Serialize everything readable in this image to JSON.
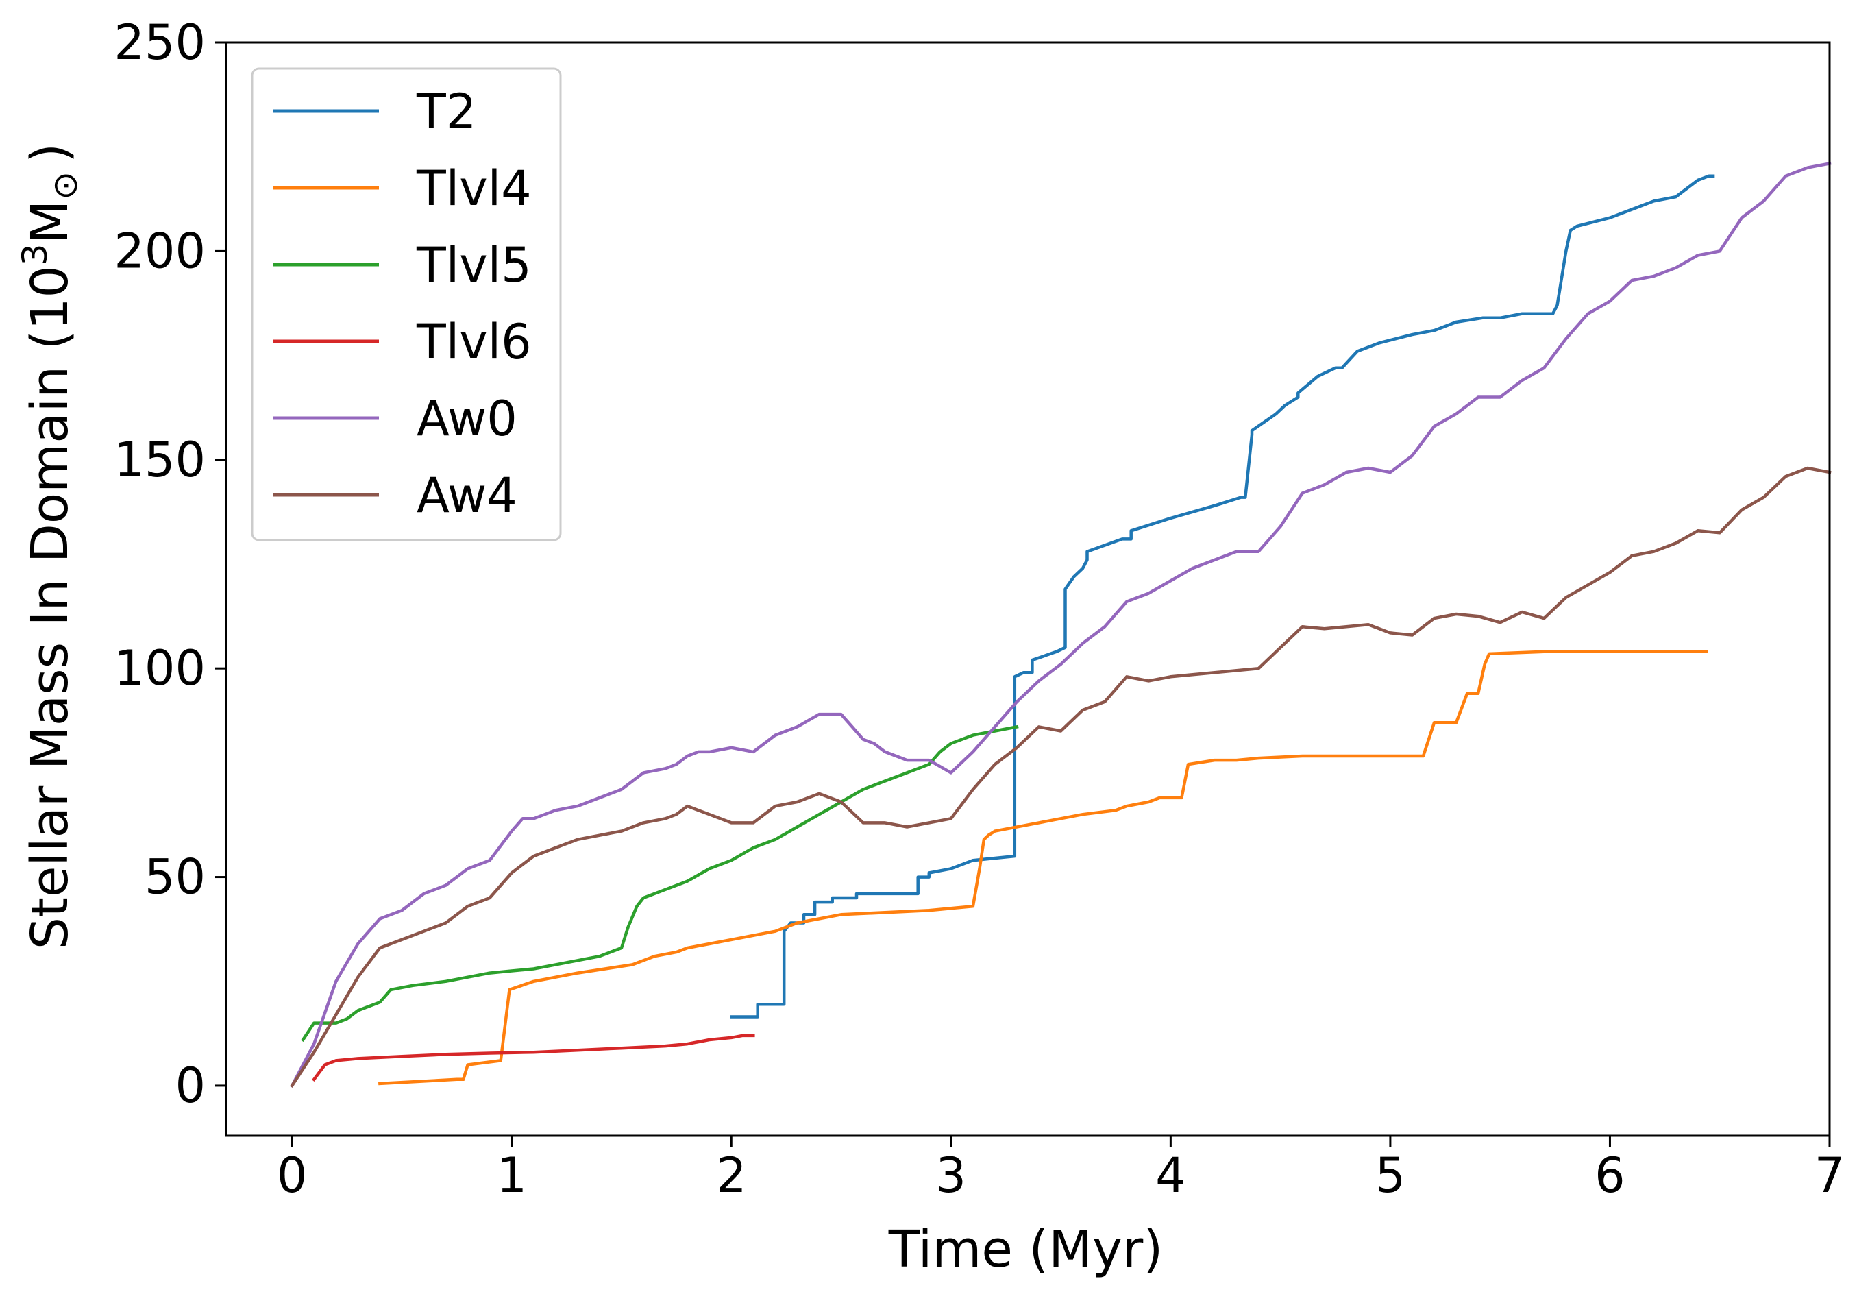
{
  "chart_data": {
    "type": "line",
    "title": "",
    "xlabel": "Time (Myr)",
    "ylabel_main": "Stellar Mass In Domain (10",
    "ylabel_sup": "3",
    "ylabel_tail": "M",
    "ylabel_sub": "⊙",
    "ylabel_close": ")",
    "xlim": [
      -0.3,
      7
    ],
    "ylim": [
      -12,
      250
    ],
    "xticks": [
      0,
      1,
      2,
      3,
      4,
      5,
      6,
      7
    ],
    "yticks": [
      0,
      50,
      100,
      150,
      200,
      250
    ],
    "xtick_labels": [
      "0",
      "1",
      "2",
      "3",
      "4",
      "5",
      "6",
      "7"
    ],
    "ytick_labels": [
      "0",
      "50",
      "100",
      "150",
      "200",
      "250"
    ],
    "grid": false,
    "legend_position": "top-left",
    "series": [
      {
        "name": "T2",
        "color": "#1f77b4",
        "x": [
          2.0,
          2.12,
          2.12,
          2.24,
          2.24,
          2.27,
          2.33,
          2.33,
          2.38,
          2.38,
          2.46,
          2.46,
          2.57,
          2.57,
          2.85,
          2.85,
          2.9,
          2.9,
          3.0,
          3.1,
          3.29,
          3.29,
          3.33,
          3.37,
          3.37,
          3.48,
          3.52,
          3.52,
          3.56,
          3.6,
          3.62,
          3.62,
          3.78,
          3.82,
          3.82,
          4.0,
          4.2,
          4.32,
          4.34,
          4.37,
          4.37,
          4.48,
          4.52,
          4.58,
          4.58,
          4.67,
          4.75,
          4.78,
          4.85,
          4.95,
          5.1,
          5.2,
          5.3,
          5.42,
          5.5,
          5.6,
          5.74,
          5.76,
          5.8,
          5.82,
          5.85,
          6.0,
          6.1,
          6.15,
          6.2,
          6.3,
          6.35,
          6.4,
          6.45,
          6.47
        ],
        "y": [
          16.5,
          16.5,
          19.5,
          19.5,
          37,
          39,
          39,
          41,
          41,
          44,
          44,
          45,
          45,
          46,
          46,
          50,
          50,
          51,
          52,
          54,
          55,
          98,
          99,
          99,
          102,
          104,
          105,
          119,
          122,
          124,
          126,
          128,
          131,
          131,
          133,
          136,
          139,
          141,
          141,
          156,
          157,
          161,
          163,
          165,
          166,
          170,
          172,
          172,
          176,
          178,
          180,
          181,
          183,
          184,
          184,
          185,
          185,
          187,
          200,
          205,
          206,
          208,
          210,
          211,
          212,
          213,
          215,
          217,
          218,
          218
        ]
      },
      {
        "name": "Tlvl4",
        "color": "#ff7f0e",
        "x": [
          0.4,
          0.75,
          0.78,
          0.8,
          0.95,
          0.99,
          1.1,
          1.3,
          1.55,
          1.65,
          1.75,
          1.8,
          1.9,
          2.0,
          2.1,
          2.2,
          2.3,
          2.5,
          2.9,
          3.0,
          3.1,
          3.13,
          3.15,
          3.17,
          3.2,
          3.4,
          3.6,
          3.75,
          3.8,
          3.9,
          3.95,
          4.05,
          4.08,
          4.2,
          4.3,
          4.4,
          4.6,
          5.15,
          5.2,
          5.3,
          5.35,
          5.4,
          5.43,
          5.45,
          5.7,
          6.0,
          6.44
        ],
        "y": [
          0.5,
          1.5,
          1.5,
          5,
          6,
          23,
          25,
          27,
          29,
          31,
          32,
          33,
          34,
          35,
          36,
          37,
          39,
          41,
          42,
          42.5,
          43,
          52,
          59,
          60,
          61,
          63,
          65,
          66,
          67,
          68,
          69,
          69,
          77,
          78,
          78,
          78.5,
          79,
          79,
          87,
          87,
          94,
          94,
          101,
          103.5,
          104,
          104,
          104
        ]
      },
      {
        "name": "Tlvl5",
        "color": "#2ca02c",
        "x": [
          0.05,
          0.1,
          0.2,
          0.25,
          0.3,
          0.4,
          0.45,
          0.55,
          0.7,
          0.8,
          0.9,
          1.0,
          1.1,
          1.2,
          1.3,
          1.4,
          1.5,
          1.53,
          1.57,
          1.6,
          1.7,
          1.8,
          1.9,
          2.0,
          2.1,
          2.2,
          2.3,
          2.4,
          2.5,
          2.6,
          2.7,
          2.8,
          2.9,
          2.95,
          3.0,
          3.1,
          3.2,
          3.3
        ],
        "y": [
          11,
          15,
          15,
          16,
          18,
          20,
          23,
          24,
          25,
          26,
          27,
          27.5,
          28,
          29,
          30,
          31,
          33,
          38,
          43,
          45,
          47,
          49,
          52,
          54,
          57,
          59,
          62,
          65,
          68,
          71,
          73,
          75,
          77,
          80,
          82,
          84,
          85,
          86
        ]
      },
      {
        "name": "Tlvl6",
        "color": "#d62728",
        "x": [
          0.1,
          0.15,
          0.2,
          0.3,
          0.5,
          0.7,
          0.9,
          1.1,
          1.3,
          1.5,
          1.7,
          1.8,
          1.9,
          2.0,
          2.05,
          2.1
        ],
        "y": [
          1.5,
          5,
          6,
          6.5,
          7,
          7.5,
          7.8,
          8,
          8.5,
          9,
          9.5,
          10,
          11,
          11.5,
          12,
          12
        ]
      },
      {
        "name": "Aw0",
        "color": "#9467bd",
        "x": [
          0.0,
          0.1,
          0.2,
          0.3,
          0.4,
          0.5,
          0.6,
          0.7,
          0.8,
          0.9,
          1.0,
          1.05,
          1.1,
          1.2,
          1.3,
          1.4,
          1.5,
          1.6,
          1.7,
          1.75,
          1.8,
          1.85,
          1.9,
          2.0,
          2.1,
          2.2,
          2.3,
          2.4,
          2.45,
          2.5,
          2.55,
          2.6,
          2.65,
          2.7,
          2.8,
          2.9,
          3.0,
          3.1,
          3.2,
          3.3,
          3.4,
          3.5,
          3.6,
          3.7,
          3.8,
          3.9,
          4.0,
          4.1,
          4.2,
          4.3,
          4.4,
          4.5,
          4.6,
          4.7,
          4.8,
          4.9,
          5.0,
          5.1,
          5.2,
          5.3,
          5.4,
          5.45,
          5.5,
          5.6,
          5.7,
          5.8,
          5.9,
          6.0,
          6.1,
          6.2,
          6.3,
          6.4,
          6.5,
          6.6,
          6.7,
          6.8,
          6.9,
          7.0
        ],
        "y": [
          0,
          10,
          25,
          34,
          40,
          42,
          46,
          48,
          52,
          54,
          61,
          64,
          64,
          66,
          67,
          69,
          71,
          75,
          76,
          77,
          79,
          80,
          80,
          81,
          80,
          84,
          86,
          89,
          89,
          89,
          86,
          83,
          82,
          80,
          78,
          78,
          75,
          80,
          86,
          92,
          97,
          101,
          106,
          110,
          116,
          118,
          121,
          124,
          126,
          128,
          128,
          134,
          142,
          144,
          147,
          148,
          147,
          151,
          158,
          161,
          165,
          165,
          165,
          169,
          172,
          179,
          185,
          188,
          193,
          194,
          196,
          199,
          200,
          208,
          212,
          218,
          220,
          221
        ]
      },
      {
        "name": "Aw4",
        "color": "#8c564b",
        "x": [
          0.0,
          0.1,
          0.2,
          0.3,
          0.4,
          0.5,
          0.6,
          0.7,
          0.8,
          0.9,
          1.0,
          1.05,
          1.1,
          1.2,
          1.3,
          1.4,
          1.5,
          1.6,
          1.7,
          1.75,
          1.8,
          1.85,
          1.9,
          2.0,
          2.1,
          2.2,
          2.3,
          2.4,
          2.5,
          2.6,
          2.7,
          2.8,
          2.9,
          3.0,
          3.1,
          3.2,
          3.3,
          3.4,
          3.5,
          3.6,
          3.7,
          3.8,
          3.9,
          4.0,
          4.1,
          4.2,
          4.3,
          4.4,
          4.5,
          4.6,
          4.7,
          4.8,
          4.9,
          5.0,
          5.1,
          5.2,
          5.3,
          5.4,
          5.5,
          5.6,
          5.7,
          5.8,
          5.9,
          6.0,
          6.1,
          6.2,
          6.3,
          6.4,
          6.5,
          6.6,
          6.7,
          6.8,
          6.9,
          7.0
        ],
        "y": [
          0,
          8,
          17,
          26,
          33,
          35,
          37,
          39,
          43,
          45,
          51,
          53,
          55,
          57,
          59,
          60,
          61,
          63,
          64,
          65,
          67,
          66,
          65,
          63,
          63,
          67,
          68,
          70,
          68,
          63,
          63,
          62,
          63,
          64,
          71,
          77,
          81,
          86,
          85,
          90,
          92,
          98,
          97,
          98,
          98.5,
          99,
          99.5,
          100,
          105,
          110,
          109.5,
          110,
          110.5,
          108.5,
          108,
          112,
          113,
          112.5,
          111,
          113.5,
          112,
          117,
          120,
          123,
          127,
          128,
          130,
          133,
          132.5,
          138,
          141,
          146,
          148,
          147
        ]
      }
    ]
  }
}
